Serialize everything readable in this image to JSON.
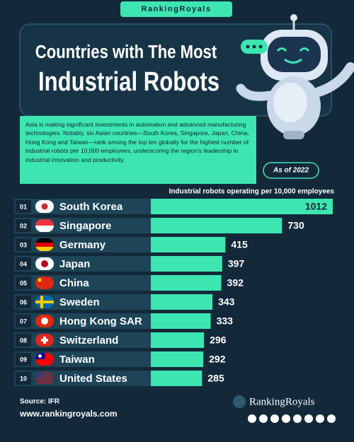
{
  "brand": "RankingRoyals",
  "chart_data": {
    "type": "bar",
    "orientation": "horizontal",
    "title_lines": [
      "Countries with The Most",
      "Industrial Robots"
    ],
    "description": "Asia is making significant investments in automation and advanced manufacturing technologies. Notably, six Asian countries—South Korea, Singapore, Japan, China, Hong Kong and Taiwan—rank among the top ten globally for the highest number of industrial robots per 10,000 employees, underscoring the region's leadership in industrial innovation and productivity.",
    "date_badge": "As of 2022",
    "value_axis_label": "Industrial robots operating per 10,000 employees",
    "ranks": [
      "01",
      "02",
      "03",
      "04",
      "05",
      "06",
      "07",
      "08",
      "09",
      "10"
    ],
    "categories": [
      "South Korea",
      "Singapore",
      "Germany",
      "Japan",
      "China",
      "Sweden",
      "Hong Kong SAR",
      "Switzerland",
      "Taiwan",
      "United States"
    ],
    "values": [
      1012,
      730,
      415,
      397,
      392,
      343,
      333,
      296,
      292,
      285
    ],
    "color": "#3de6b1"
  },
  "source": "Source: IFR",
  "website": "www.rankingroyals.com",
  "footer_brand": "RankingRoyals"
}
